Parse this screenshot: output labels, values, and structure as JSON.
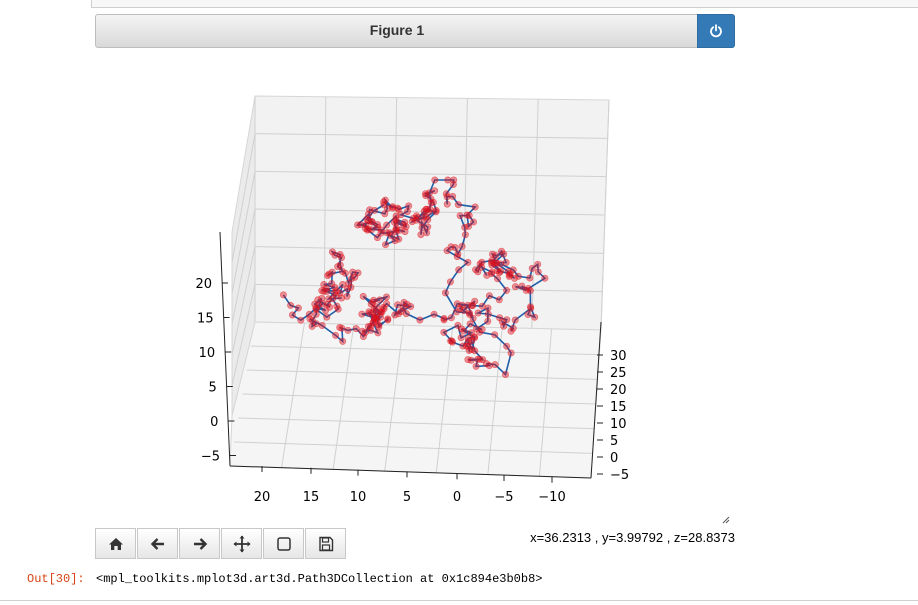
{
  "figure": {
    "title": "Figure 1",
    "close_icon": "power-icon"
  },
  "colors": {
    "header_button": "#337ab7",
    "line": "#1f5fa8",
    "points": "#e0101a"
  },
  "toolbar": {
    "buttons": [
      {
        "name": "home",
        "icon": "home-icon"
      },
      {
        "name": "back",
        "icon": "arrow-left-icon"
      },
      {
        "name": "forward",
        "icon": "arrow-right-icon"
      },
      {
        "name": "pan",
        "icon": "move-icon"
      },
      {
        "name": "zoom",
        "icon": "zoom-rect-icon"
      },
      {
        "name": "save",
        "icon": "save-icon"
      }
    ]
  },
  "status": {
    "coords": "x=36.2313 , y=3.99792 , z=28.8373"
  },
  "output": {
    "prompt": "Out[30]:",
    "text": "<mpl_toolkits.mplot3d.art3d.Path3DCollection at 0x1c894e3b0b8>"
  },
  "chart_data": {
    "type": "scatter",
    "subtype": "3d random walk (line + scatter)",
    "axes": {
      "x": {
        "ticks": [
          "20",
          "15",
          "10",
          "5",
          "0",
          "−5",
          "−10"
        ]
      },
      "y": {
        "ticks": [
          "30",
          "25",
          "20",
          "15",
          "10",
          "5",
          "0",
          "−5"
        ]
      },
      "z": {
        "ticks": [
          "20",
          "15",
          "10",
          "5",
          "0",
          "−5"
        ]
      }
    },
    "grid": true
  }
}
